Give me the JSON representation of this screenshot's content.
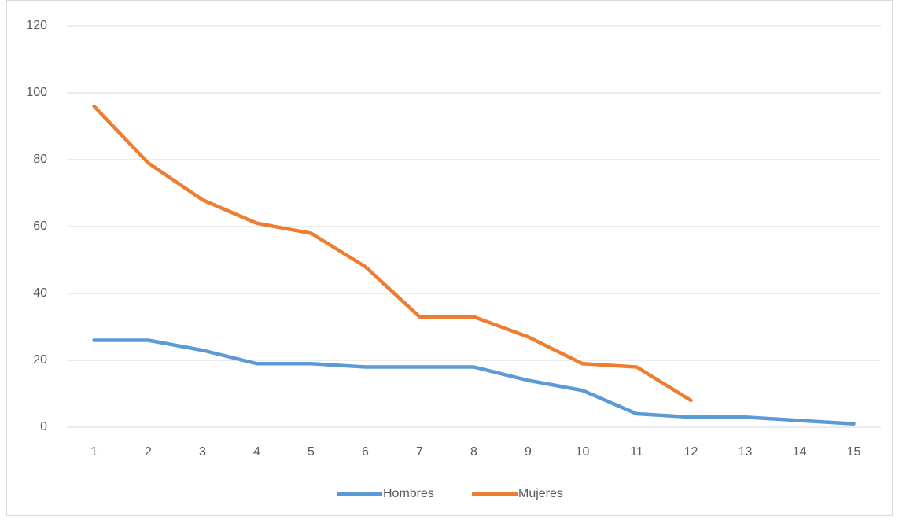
{
  "chart_data": {
    "type": "line",
    "categories": [
      "1",
      "2",
      "3",
      "4",
      "5",
      "6",
      "7",
      "8",
      "9",
      "10",
      "11",
      "12",
      "13",
      "14",
      "15"
    ],
    "series": [
      {
        "name": "Hombres",
        "color": "#5b9bd5",
        "values": [
          26,
          26,
          23,
          19,
          19,
          18,
          18,
          18,
          14,
          11,
          4,
          3,
          3,
          2,
          1
        ]
      },
      {
        "name": "Mujeres",
        "color": "#ed7d31",
        "values": [
          96,
          79,
          68,
          61,
          58,
          48,
          33,
          33,
          27,
          19,
          18,
          8,
          null,
          null,
          null
        ]
      }
    ],
    "ylim": [
      0,
      120
    ],
    "yticks": [
      0,
      20,
      40,
      60,
      80,
      100,
      120
    ],
    "grid": true,
    "legend": "bottom"
  }
}
